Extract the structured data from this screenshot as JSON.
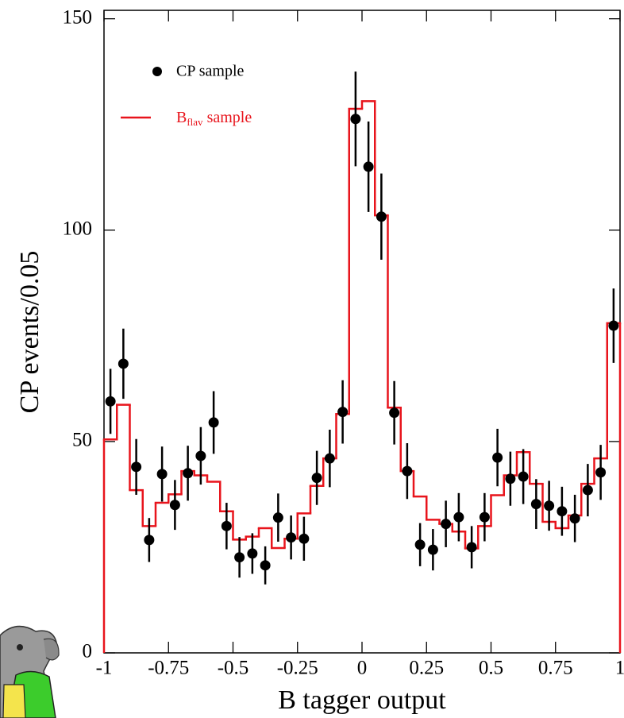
{
  "chart_data": {
    "type": "histogram",
    "xlabel": "B tagger output",
    "ylabel": "CP events/0.05",
    "xlim": [
      -1,
      1
    ],
    "ylim": [
      0,
      152
    ],
    "xticks": [
      -1,
      -0.75,
      -0.5,
      -0.25,
      0,
      0.25,
      0.5,
      0.75,
      1
    ],
    "yticks": [
      0,
      50,
      100,
      150
    ],
    "bins": [
      -1,
      -0.95,
      -0.9,
      -0.85,
      -0.8,
      -0.75,
      -0.7,
      -0.65,
      -0.6,
      -0.55,
      -0.5,
      -0.45,
      -0.4,
      -0.35,
      -0.3,
      -0.25,
      -0.2,
      -0.15,
      -0.1,
      -0.05,
      0,
      0.05,
      0.1,
      0.15,
      0.2,
      0.25,
      0.3,
      0.35,
      0.4,
      0.45,
      0.5,
      0.55,
      0.6,
      0.65,
      0.7,
      0.75,
      0.8,
      0.85,
      0.9,
      0.95,
      1
    ],
    "x": [
      -0.975,
      -0.925,
      -0.875,
      -0.825,
      -0.775,
      -0.725,
      -0.675,
      -0.625,
      -0.575,
      -0.525,
      -0.475,
      -0.425,
      -0.375,
      -0.325,
      -0.275,
      -0.225,
      -0.175,
      -0.125,
      -0.075,
      -0.025,
      0.025,
      0.075,
      0.125,
      0.175,
      0.225,
      0.275,
      0.325,
      0.375,
      0.425,
      0.475,
      0.525,
      0.575,
      0.625,
      0.675,
      0.725,
      0.775,
      0.825,
      0.875,
      0.925,
      0.975
    ],
    "series": [
      {
        "name": "CP sample",
        "style": "points",
        "color": "#000000",
        "values": [
          59.5,
          68.4,
          44,
          26.7,
          42.3,
          35,
          42.5,
          46.6,
          54.5,
          30,
          22.6,
          23.5,
          20.7,
          32,
          27.3,
          27,
          41.4,
          46,
          57,
          126.3,
          115,
          103.2,
          56.8,
          43,
          25.6,
          24.4,
          30.5,
          32.1,
          25,
          32.1,
          46.2,
          41.2,
          41.7,
          35.2,
          34.8,
          33.5,
          31.8,
          38.5,
          42.7,
          77.4
        ],
        "errors": [
          7.7,
          8.3,
          6.6,
          5.2,
          6.5,
          5.9,
          6.5,
          6.8,
          7.4,
          5.5,
          4.8,
          4.8,
          4.5,
          5.7,
          5.2,
          5.2,
          6.4,
          6.8,
          7.5,
          11.2,
          10.7,
          10.2,
          7.5,
          6.6,
          5.1,
          4.9,
          5.5,
          5.7,
          5,
          5.7,
          6.8,
          6.4,
          6.5,
          5.9,
          5.9,
          5.8,
          5.6,
          6.2,
          6.5,
          8.8
        ]
      },
      {
        "name": {
          "base": "B",
          "sub": "flav",
          "rest": "sample"
        },
        "style": "step",
        "color": "#e8141c",
        "values": [
          50.5,
          58.7,
          38.5,
          30,
          35.5,
          37.5,
          43,
          42,
          40.5,
          33.5,
          26.8,
          27.5,
          29.5,
          24.8,
          27,
          33,
          39.5,
          46,
          56.5,
          128.7,
          130.5,
          103.5,
          58,
          43,
          37,
          31.5,
          30.5,
          28.7,
          24.7,
          30,
          37.3,
          42,
          47.5,
          40,
          31,
          29.5,
          32.5,
          40,
          46,
          78
        ]
      }
    ]
  }
}
